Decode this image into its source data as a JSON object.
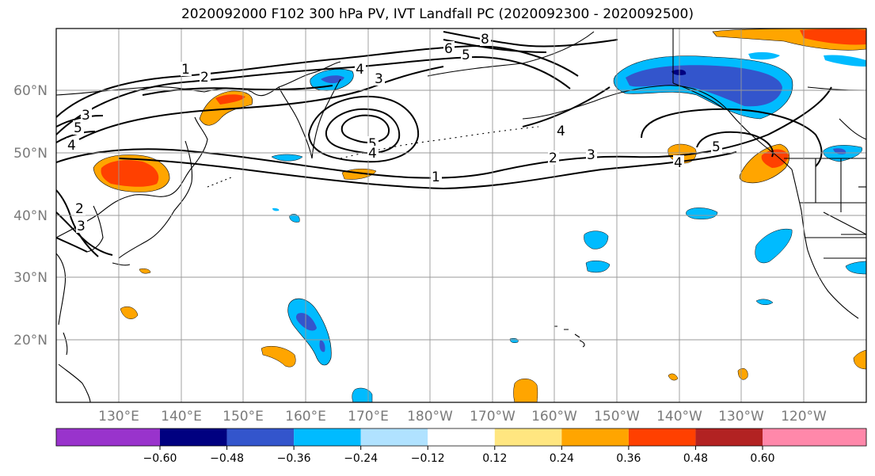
{
  "title": "2020092000 F102 300 hPa PV, IVT Landfall PC (2020092300 - 2020092500)",
  "lat_labels": [
    "60°N",
    "50°N",
    "40°N",
    "30°N",
    "20°N"
  ],
  "lon_labels": [
    "130°E",
    "140°E",
    "150°E",
    "160°E",
    "170°E",
    "180°W",
    "170°W",
    "160°W",
    "150°W",
    "140°W",
    "130°W",
    "120°W"
  ],
  "colorbar": {
    "tick_labels": [
      "−0.60",
      "−0.48",
      "−0.36",
      "−0.24",
      "−0.12",
      "0.12",
      "0.24",
      "0.36",
      "0.48",
      "0.60"
    ],
    "colors": [
      "#9933cc",
      "#000080",
      "#3355cc",
      "#00bbff",
      "#b0e2ff",
      "#ffffff",
      "#ffe680",
      "#ffa500",
      "#ff4000",
      "#b22222",
      "#ff88aa"
    ]
  },
  "contour_labels": [
    "1",
    "2",
    "3",
    "4",
    "5",
    "6",
    "8"
  ]
}
